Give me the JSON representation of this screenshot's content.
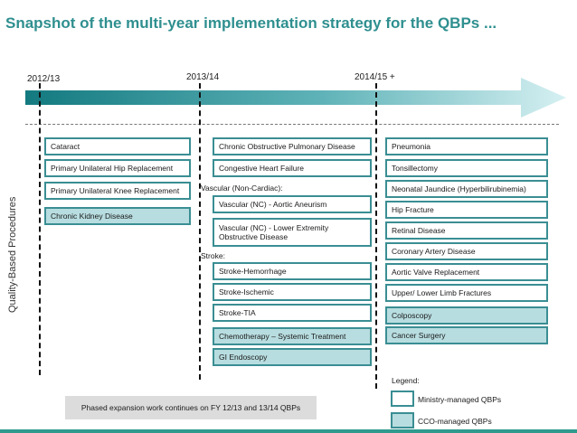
{
  "title": "Snapshot of the multi-year implementation strategy for the QBPs ...",
  "years": [
    "2012/13",
    "2013/14",
    "2014/15 +"
  ],
  "y_axis_label": "Quality-Based Procedures",
  "columns": [
    {
      "year": "2012/13",
      "items": [
        {
          "label": "Cataract",
          "managed": "ministry"
        },
        {
          "label": "Primary Unilateral Hip Replacement",
          "managed": "ministry"
        },
        {
          "label": "Primary Unilateral Knee Replacement",
          "managed": "ministry"
        },
        {
          "label": "Chronic Kidney Disease",
          "managed": "cco"
        }
      ]
    },
    {
      "year": "2013/14",
      "items": [
        {
          "label": "Chronic Obstructive Pulmonary Disease",
          "managed": "ministry"
        },
        {
          "label": "Congestive Heart Failure",
          "managed": "ministry"
        },
        {
          "label": "Vascular (NC) - Aortic Aneurism",
          "managed": "ministry"
        },
        {
          "label": "Vascular (NC) - Lower Extremity Obstructive Disease",
          "managed": "ministry"
        },
        {
          "label": "Stroke-Hemorrhage",
          "managed": "ministry"
        },
        {
          "label": "Stroke-Ischemic",
          "managed": "ministry"
        },
        {
          "label": "Stroke-TIA",
          "managed": "ministry"
        },
        {
          "label": "Chemotherapy – Systemic Treatment",
          "managed": "cco"
        },
        {
          "label": "GI Endoscopy",
          "managed": "cco"
        }
      ],
      "group_labels": {
        "vascular": "Vascular (Non-Cardiac):",
        "stroke": "Stroke:"
      }
    },
    {
      "year": "2014/15 +",
      "items": [
        {
          "label": "Pneumonia",
          "managed": "ministry"
        },
        {
          "label": "Tonsillectomy",
          "managed": "ministry"
        },
        {
          "label": "Neonatal Jaundice (Hyperbilirubinemia)",
          "managed": "ministry"
        },
        {
          "label": "Hip Fracture",
          "managed": "ministry"
        },
        {
          "label": "Retinal Disease",
          "managed": "ministry"
        },
        {
          "label": "Coronary Artery Disease",
          "managed": "ministry"
        },
        {
          "label": "Aortic Valve Replacement",
          "managed": "ministry"
        },
        {
          "label": "Upper/ Lower Limb Fractures",
          "managed": "ministry"
        },
        {
          "label": "Colposcopy",
          "managed": "cco"
        },
        {
          "label": "Cancer Surgery",
          "managed": "cco"
        }
      ]
    }
  ],
  "note": "Phased expansion work continues on FY 12/13 and 13/14 QBPs",
  "legend": {
    "title": "Legend:",
    "ministry_label": "Ministry-managed QBPs",
    "cco_label": "CCO-managed QBPs"
  },
  "colors": {
    "title": "#2f8f8f",
    "arrow_start": "#137a80",
    "arrow_end": "#cfeef0",
    "box_border": "#3a8e93",
    "cco_fill": "#b8dde0",
    "note_bg": "#dcdcdc",
    "bottom_rule": "#2f9a8e"
  }
}
